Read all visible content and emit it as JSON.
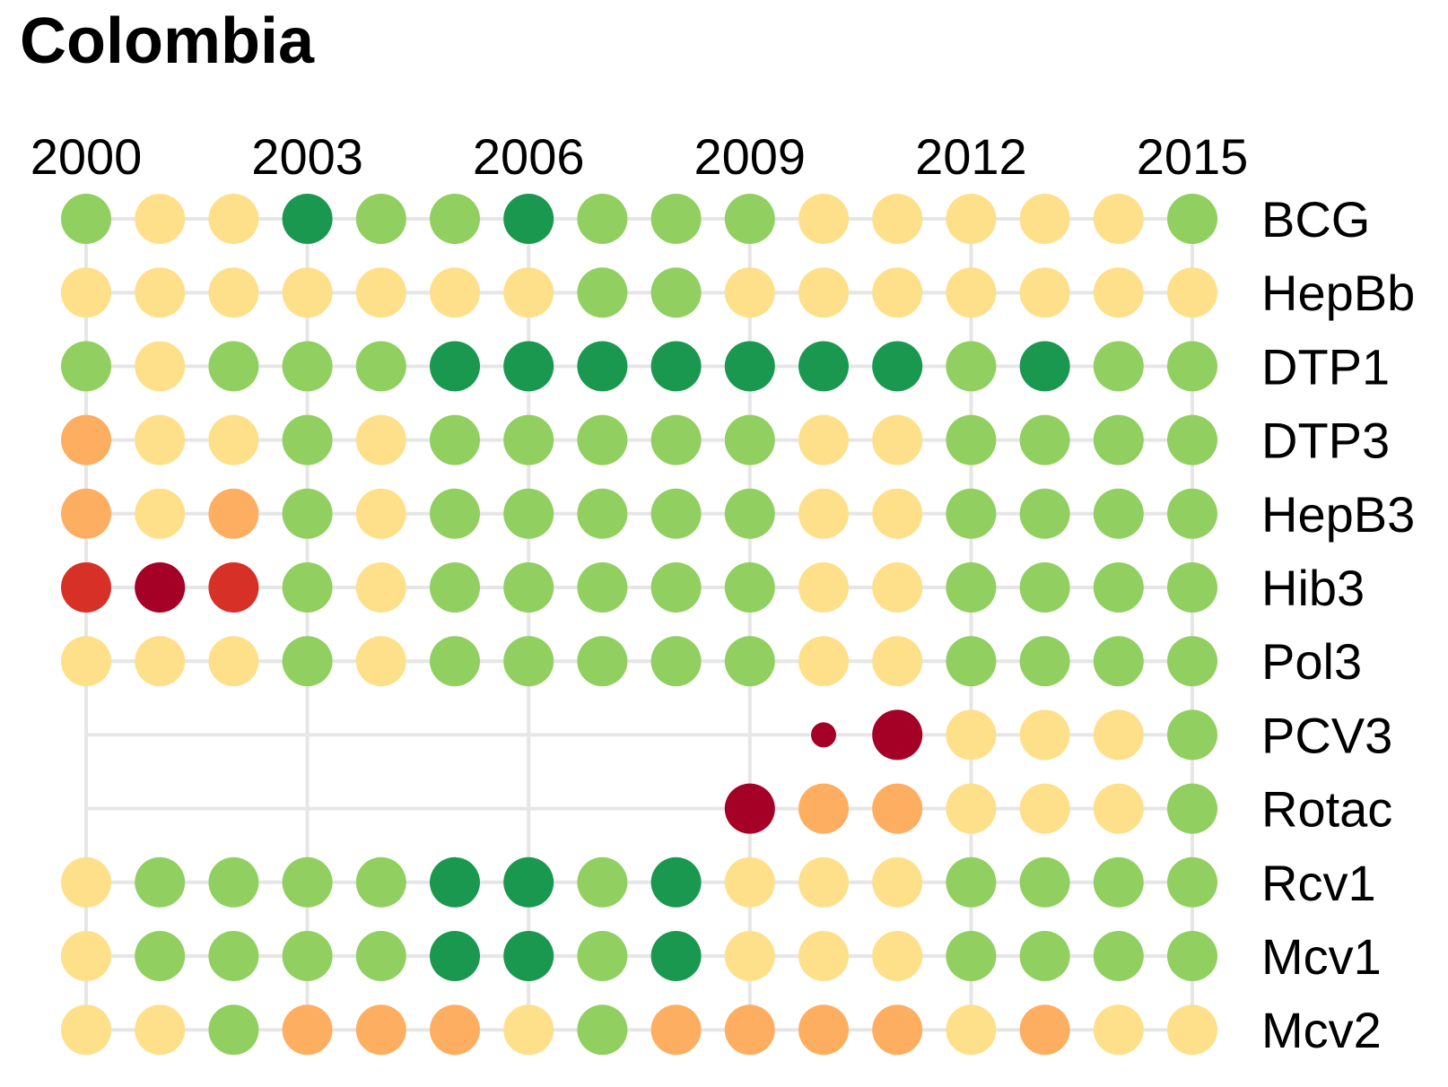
{
  "chart_data": {
    "type": "dot-matrix",
    "title": "Colombia",
    "years": [
      2000,
      2001,
      2002,
      2003,
      2004,
      2005,
      2006,
      2007,
      2008,
      2009,
      2010,
      2011,
      2012,
      2013,
      2014,
      2015
    ],
    "x_tick_labels": [
      "2000",
      "2003",
      "2006",
      "2009",
      "2012",
      "2015"
    ],
    "colors": {
      "dark_red": "#a50026",
      "red": "#d73027",
      "orange": "#fdae61",
      "yellow": "#fee08b",
      "light_green": "#91cf60",
      "dark_green": "#1a9850"
    },
    "rows": [
      {
        "name": "BCG",
        "values": [
          "light_green",
          "yellow",
          "yellow",
          "dark_green",
          "light_green",
          "light_green",
          "dark_green",
          "light_green",
          "light_green",
          "light_green",
          "yellow",
          "yellow",
          "yellow",
          "yellow",
          "yellow",
          "light_green"
        ]
      },
      {
        "name": "HepBb",
        "values": [
          "yellow",
          "yellow",
          "yellow",
          "yellow",
          "yellow",
          "yellow",
          "yellow",
          "light_green",
          "light_green",
          "yellow",
          "yellow",
          "yellow",
          "yellow",
          "yellow",
          "yellow",
          "yellow"
        ]
      },
      {
        "name": "DTP1",
        "values": [
          "light_green",
          "yellow",
          "light_green",
          "light_green",
          "light_green",
          "dark_green",
          "dark_green",
          "dark_green",
          "dark_green",
          "dark_green",
          "dark_green",
          "dark_green",
          "light_green",
          "dark_green",
          "light_green",
          "light_green"
        ]
      },
      {
        "name": "DTP3",
        "values": [
          "orange",
          "yellow",
          "yellow",
          "light_green",
          "yellow",
          "light_green",
          "light_green",
          "light_green",
          "light_green",
          "light_green",
          "yellow",
          "yellow",
          "light_green",
          "light_green",
          "light_green",
          "light_green"
        ]
      },
      {
        "name": "HepB3",
        "values": [
          "orange",
          "yellow",
          "orange",
          "light_green",
          "yellow",
          "light_green",
          "light_green",
          "light_green",
          "light_green",
          "light_green",
          "yellow",
          "yellow",
          "light_green",
          "light_green",
          "light_green",
          "light_green"
        ]
      },
      {
        "name": "Hib3",
        "values": [
          "red",
          "dark_red",
          "red",
          "light_green",
          "yellow",
          "light_green",
          "light_green",
          "light_green",
          "light_green",
          "light_green",
          "yellow",
          "yellow",
          "light_green",
          "light_green",
          "light_green",
          "light_green"
        ]
      },
      {
        "name": "Pol3",
        "values": [
          "yellow",
          "yellow",
          "yellow",
          "light_green",
          "yellow",
          "light_green",
          "light_green",
          "light_green",
          "light_green",
          "light_green",
          "yellow",
          "yellow",
          "light_green",
          "light_green",
          "light_green",
          "light_green"
        ]
      },
      {
        "name": "PCV3",
        "values": [
          null,
          null,
          null,
          null,
          null,
          null,
          null,
          null,
          null,
          null,
          "dark_red",
          "dark_red",
          "yellow",
          "yellow",
          "yellow",
          "light_green"
        ],
        "small": [
          10
        ]
      },
      {
        "name": "Rotac",
        "values": [
          null,
          null,
          null,
          null,
          null,
          null,
          null,
          null,
          null,
          "dark_red",
          "orange",
          "orange",
          "yellow",
          "yellow",
          "yellow",
          "light_green"
        ]
      },
      {
        "name": "Rcv1",
        "values": [
          "yellow",
          "light_green",
          "light_green",
          "light_green",
          "light_green",
          "dark_green",
          "dark_green",
          "light_green",
          "dark_green",
          "yellow",
          "yellow",
          "yellow",
          "light_green",
          "light_green",
          "light_green",
          "light_green"
        ]
      },
      {
        "name": "Mcv1",
        "values": [
          "yellow",
          "light_green",
          "light_green",
          "light_green",
          "light_green",
          "dark_green",
          "dark_green",
          "light_green",
          "dark_green",
          "yellow",
          "yellow",
          "yellow",
          "light_green",
          "light_green",
          "light_green",
          "light_green"
        ]
      },
      {
        "name": "Mcv2",
        "values": [
          "yellow",
          "yellow",
          "light_green",
          "orange",
          "orange",
          "orange",
          "yellow",
          "light_green",
          "orange",
          "orange",
          "orange",
          "orange",
          "yellow",
          "orange",
          "yellow",
          "yellow"
        ]
      }
    ],
    "grid": true
  }
}
